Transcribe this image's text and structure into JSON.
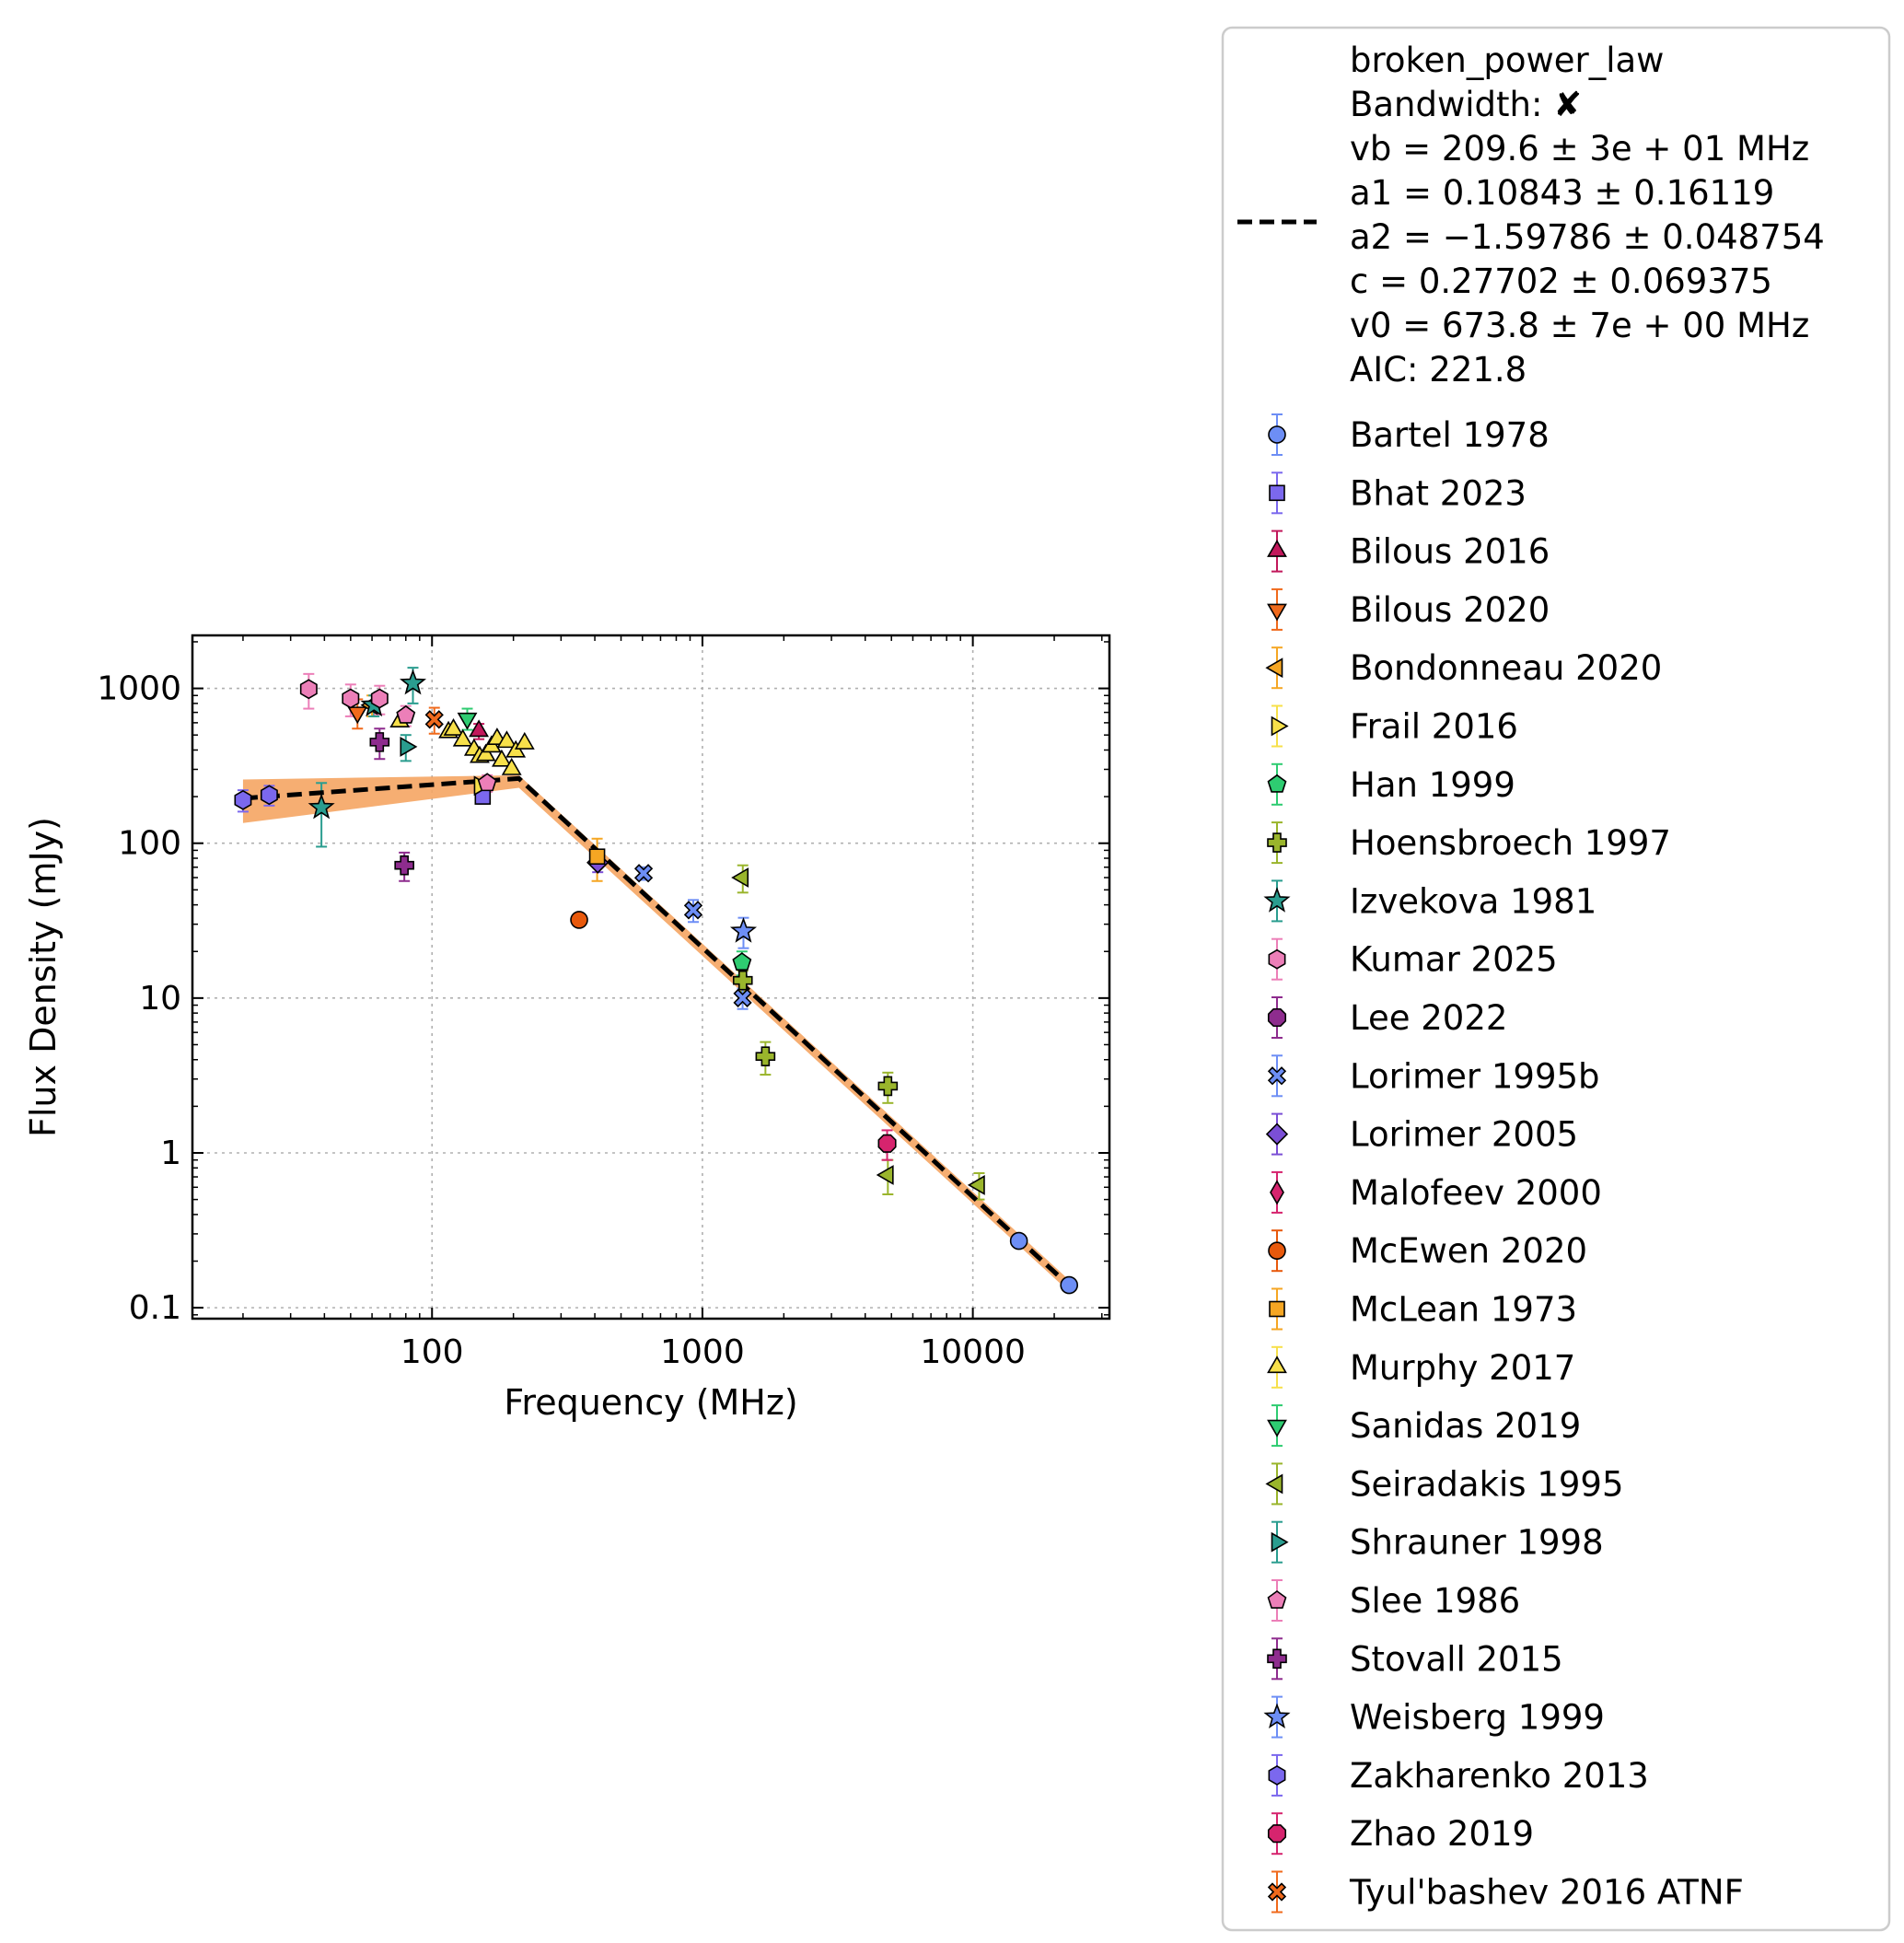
{
  "chart_data": {
    "type": "scatter",
    "xlabel": "Frequency (MHz)",
    "ylabel": "Flux Density (mJy)",
    "xscale": "log",
    "yscale": "log",
    "xlim": [
      13,
      32000
    ],
    "ylim": [
      0.085,
      2200
    ],
    "x_ticks": [
      {
        "v": 100,
        "label": "100"
      },
      {
        "v": 1000,
        "label": "1000"
      },
      {
        "v": 10000,
        "label": "10000"
      }
    ],
    "y_ticks": [
      {
        "v": 0.1,
        "label": "0.1"
      },
      {
        "v": 1,
        "label": "1"
      },
      {
        "v": 10,
        "label": "10"
      },
      {
        "v": 100,
        "label": "100"
      },
      {
        "v": 1000,
        "label": "1000"
      }
    ],
    "grid": true,
    "legend_position": "outside right",
    "fit": {
      "name": "broken_power_law",
      "description_lines": [
        "broken_power_law",
        "Bandwidth: ✘",
        "vb = 209.6 ± 3e + 01 MHz",
        "a1 = 0.10843 ± 0.16119",
        "a2 = −1.59786 ± 0.048754",
        "c = 0.27702 ± 0.069375",
        "v0 = 673.8 ± 7e + 00 MHz",
        "AIC: 221.8"
      ],
      "line_color": "#000000",
      "band_color": "#f5a563",
      "line": [
        [
          20,
          195
        ],
        [
          209.6,
          262
        ],
        [
          22600,
          0.14
        ]
      ],
      "band_upper": [
        [
          20,
          258
        ],
        [
          209.6,
          275
        ],
        [
          22600,
          0.152
        ]
      ],
      "band_lower": [
        [
          20,
          135
        ],
        [
          209.6,
          228
        ],
        [
          22600,
          0.128
        ]
      ]
    },
    "series": [
      {
        "name": "Bartel 1978",
        "marker": "circle",
        "color": "#6d8ef5",
        "points": [
          [
            14800,
            0.27,
            0.01
          ],
          [
            22700,
            0.14,
            0.005
          ]
        ]
      },
      {
        "name": "Bhat 2023",
        "marker": "square",
        "color": "#7b68ee",
        "points": [
          [
            154,
            200,
            20
          ]
        ]
      },
      {
        "name": "Bilous 2016",
        "marker": "triangle-up",
        "color": "#c2185b",
        "points": [
          [
            149,
            530,
            60
          ]
        ]
      },
      {
        "name": "Bilous 2020",
        "marker": "triangle-down",
        "color": "#f06a1c",
        "points": [
          [
            53,
            700,
            150
          ]
        ]
      },
      {
        "name": "Bondonneau 2020",
        "marker": "triangle-left",
        "color": "#f5a623",
        "points": [
          [
            60,
            780,
            120
          ]
        ]
      },
      {
        "name": "Frail 2016",
        "marker": "triangle-right",
        "color": "#f7e04a",
        "points": [
          [
            150,
            235,
            25
          ]
        ]
      },
      {
        "name": "Han 1999",
        "marker": "pentagon",
        "color": "#2ecc71",
        "points": [
          [
            1400,
            17,
            3
          ]
        ]
      },
      {
        "name": "Hoensbroech 1997",
        "marker": "plus",
        "color": "#9ab52c",
        "points": [
          [
            1410,
            13,
            2
          ],
          [
            1710,
            4.2,
            1.0
          ],
          [
            4850,
            2.7,
            0.6
          ]
        ]
      },
      {
        "name": "Izvekova 1981",
        "marker": "star",
        "color": "#2a9d8f",
        "points": [
          [
            39,
            170,
            75
          ],
          [
            61,
            780,
            120
          ],
          [
            85,
            1080,
            280
          ]
        ]
      },
      {
        "name": "Kumar 2025",
        "marker": "hexagon",
        "color": "#ec7fb8",
        "points": [
          [
            35,
            990,
            250
          ],
          [
            50,
            860,
            200
          ],
          [
            64,
            860,
            180
          ]
        ]
      },
      {
        "name": "Lee 2022",
        "marker": "octagon",
        "color": "#8e2c8e",
        "points": []
      },
      {
        "name": "Lorimer 1995b",
        "marker": "x",
        "color": "#6d8ef5",
        "points": [
          [
            606,
            64,
            6
          ],
          [
            925,
            37,
            6
          ],
          [
            1408,
            10,
            1.5
          ]
        ]
      },
      {
        "name": "Lorimer 2005",
        "marker": "diamond",
        "color": "#7b4fd6",
        "points": [
          [
            410,
            75,
            10
          ]
        ]
      },
      {
        "name": "Malofeev 2000",
        "marker": "thin-diamond",
        "color": "#d6246e",
        "points": []
      },
      {
        "name": "McEwen 2020",
        "marker": "circle",
        "color": "#e8590c",
        "points": [
          [
            350,
            32,
            0
          ]
        ]
      },
      {
        "name": "McLean 1973",
        "marker": "square",
        "color": "#f5a623",
        "points": [
          [
            408,
            82,
            25
          ]
        ]
      },
      {
        "name": "Murphy 2017",
        "marker": "triangle-up",
        "color": "#f7e04a",
        "points": [
          [
            76,
            610,
            0
          ],
          [
            115,
            520,
            0
          ],
          [
            120,
            540,
            0
          ],
          [
            130,
            460,
            0
          ],
          [
            143,
            400,
            0
          ],
          [
            150,
            360,
            0
          ],
          [
            158,
            370,
            0
          ],
          [
            166,
            420,
            0
          ],
          [
            174,
            470,
            0
          ],
          [
            181,
            340,
            0
          ],
          [
            189,
            450,
            0
          ],
          [
            197,
            300,
            0
          ],
          [
            204,
            390,
            0
          ],
          [
            220,
            440,
            0
          ]
        ]
      },
      {
        "name": "Sanidas 2019",
        "marker": "triangle-down",
        "color": "#2ecc71",
        "points": [
          [
            135,
            640,
            100
          ]
        ]
      },
      {
        "name": "Seiradakis 1995",
        "marker": "triangle-left",
        "color": "#9ab52c",
        "points": [
          [
            1410,
            60,
            12
          ],
          [
            4850,
            0.72,
            0.18
          ],
          [
            10550,
            0.62,
            0.12
          ]
        ]
      },
      {
        "name": "Shrauner 1998",
        "marker": "triangle-right",
        "color": "#2a9d8f",
        "points": [
          [
            80,
            420,
            80
          ]
        ]
      },
      {
        "name": "Slee 1986",
        "marker": "pentagon",
        "color": "#ec7fb8",
        "points": [
          [
            80,
            670,
            100
          ],
          [
            160,
            245,
            30
          ]
        ]
      },
      {
        "name": "Stovall 2015",
        "marker": "plus",
        "color": "#8e2c8e",
        "points": [
          [
            64,
            450,
            100
          ],
          [
            79,
            72,
            15
          ]
        ]
      },
      {
        "name": "Weisberg 1999",
        "marker": "star",
        "color": "#6d8ef5",
        "points": [
          [
            1418,
            27,
            6
          ]
        ]
      },
      {
        "name": "Zakharenko 2013",
        "marker": "hexagon",
        "color": "#7b68ee",
        "points": [
          [
            20,
            190,
            30
          ],
          [
            25,
            205,
            30
          ]
        ]
      },
      {
        "name": "Zhao 2019",
        "marker": "octagon",
        "color": "#d6246e",
        "points": [
          [
            4820,
            1.15,
            0.25
          ]
        ]
      },
      {
        "name": "Tyul'bashev 2016 ATNF",
        "marker": "x-filled",
        "color": "#f06a1c",
        "points": [
          [
            102,
            630,
            120
          ]
        ]
      }
    ]
  }
}
